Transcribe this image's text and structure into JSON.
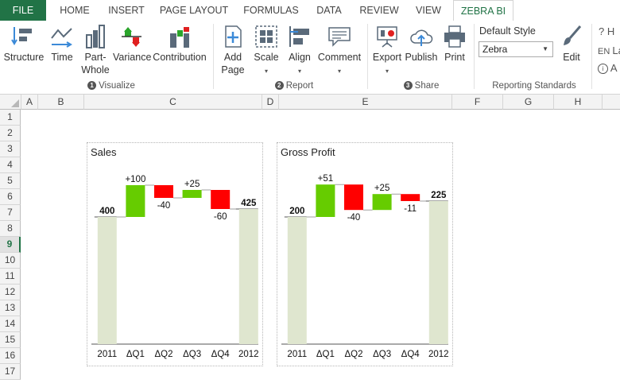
{
  "tabs": [
    "FILE",
    "HOME",
    "INSERT",
    "PAGE LAYOUT",
    "FORMULAS",
    "DATA",
    "REVIEW",
    "VIEW",
    "ZEBRA BI"
  ],
  "ribbon": {
    "visualize": {
      "buttons": [
        {
          "label": "Structure",
          "icon": "structure-icon"
        },
        {
          "label": "Time",
          "icon": "time-icon"
        },
        {
          "label": "Part-Whole",
          "label1": "Part-",
          "label2": "Whole",
          "icon": "part-whole-icon"
        },
        {
          "label": "Variance",
          "icon": "variance-icon"
        },
        {
          "label": "Contribution",
          "icon": "contribution-icon"
        }
      ],
      "group_num": "1",
      "group_label": "Visualize"
    },
    "report": {
      "add_page1": "Add",
      "add_page2": "Page",
      "scale": "Scale",
      "align": "Align",
      "comment": "Comment",
      "group_num": "2",
      "group_label": "Report"
    },
    "share": {
      "export": "Export",
      "publish": "Publish",
      "print": "Print",
      "group_num": "3",
      "group_label": "Share"
    },
    "standards": {
      "default_style_label": "Default Style",
      "style_value": "Zebra",
      "edit": "Edit",
      "group_label": "Reporting Standards"
    },
    "overflow": {
      "help": "H",
      "lang": "EN",
      "lang_text": "La",
      "about": "A"
    }
  },
  "columns": [
    "A",
    "B",
    "C",
    "D",
    "E",
    "F",
    "G",
    "H"
  ],
  "rows": [
    "1",
    "2",
    "3",
    "4",
    "5",
    "6",
    "7",
    "8",
    "9",
    "10",
    "11",
    "12",
    "13",
    "14",
    "15",
    "16",
    "17"
  ],
  "selected_row": "9",
  "colors": {
    "positive": "#66cc00",
    "negative": "#ff0000",
    "base": "#dfe6cf",
    "excel_green": "#217346"
  },
  "chart_data": [
    {
      "type": "waterfall",
      "title": "Sales",
      "categories": [
        "2011",
        "ΔQ1",
        "ΔQ2",
        "ΔQ3",
        "ΔQ4",
        "2012"
      ],
      "values": [
        400,
        100,
        -40,
        25,
        -60,
        425
      ],
      "kinds": [
        "total",
        "delta",
        "delta",
        "delta",
        "delta",
        "total"
      ],
      "labels": [
        "400",
        "+100",
        "-40",
        "+25",
        "-60",
        "425"
      ],
      "ylim": [
        0,
        520
      ]
    },
    {
      "type": "waterfall",
      "title": "Gross Profit",
      "categories": [
        "2011",
        "ΔQ1",
        "ΔQ2",
        "ΔQ3",
        "ΔQ4",
        "2012"
      ],
      "values": [
        200,
        51,
        -40,
        25,
        -11,
        225
      ],
      "kinds": [
        "total",
        "delta",
        "delta",
        "delta",
        "delta",
        "total"
      ],
      "labels": [
        "200",
        "+51",
        "-40",
        "+25",
        "-11",
        "225"
      ],
      "ylim": [
        0,
        260
      ]
    }
  ]
}
